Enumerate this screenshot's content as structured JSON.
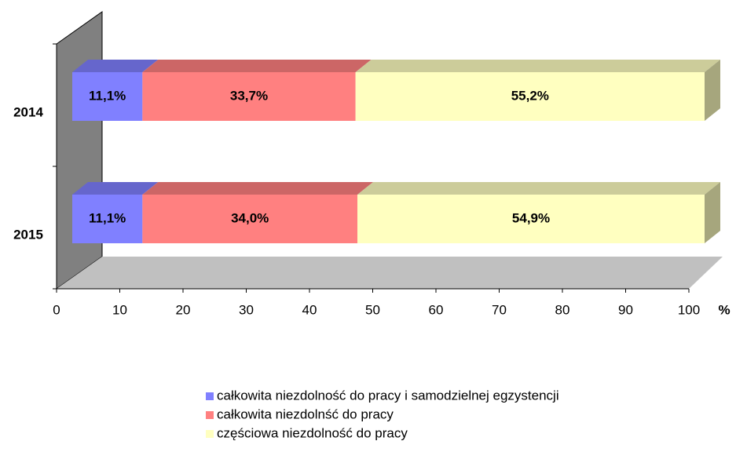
{
  "chart_data": {
    "type": "bar",
    "orientation": "horizontal",
    "stacked": true,
    "categories": [
      "2014",
      "2015"
    ],
    "series": [
      {
        "name": "całkowita niezdolność do pracy i samodzielnej egzystencji",
        "color": "#8080ff",
        "values": [
          11.1,
          11.1
        ],
        "value_labels": [
          "11,1%",
          "11,1%"
        ]
      },
      {
        "name": "całkowita niezdolnść do pracy",
        "color": "#ff8080",
        "values": [
          33.7,
          34.0
        ],
        "value_labels": [
          "33,7%",
          "34,0%"
        ]
      },
      {
        "name": "częściowa niezdolność do pracy",
        "color": "#ffffc0",
        "values": [
          55.2,
          54.9
        ],
        "value_labels": [
          "55,2%",
          "54,9%"
        ]
      }
    ],
    "xlabel": "%",
    "xlim": [
      0,
      100
    ],
    "xticks": [
      0,
      10,
      20,
      30,
      40,
      50,
      60,
      70,
      80,
      90,
      100
    ]
  }
}
